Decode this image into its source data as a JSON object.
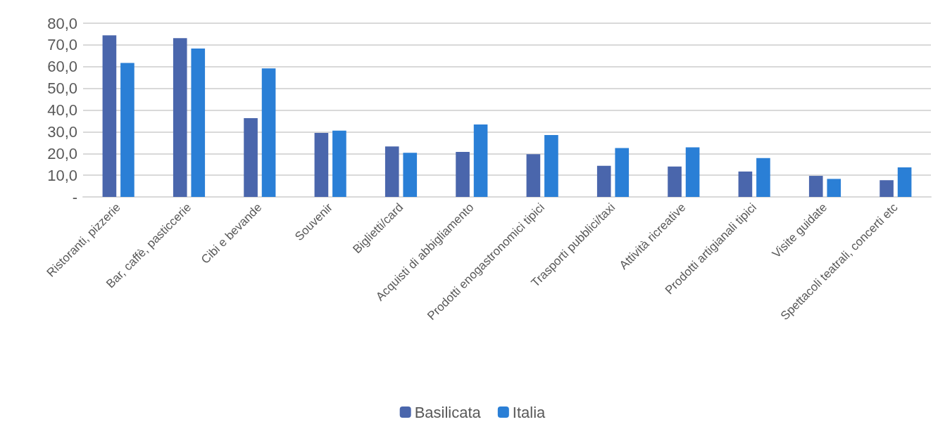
{
  "chart_data": {
    "type": "bar",
    "categories": [
      "Ristoranti, pizzerie",
      "Bar, caffè, pasticcerie",
      "Cibi e bevande",
      "Souvenir",
      "Biglietti/card",
      "Acquisti di abbigliamento",
      "Prodotti enogastronomici tipici",
      "Trasporti pubblici/taxi",
      "Attività ricreative",
      "Prodotti artigianali tipici",
      "Visite guidate",
      "Spettacoli teatrali, concerti etc"
    ],
    "series": [
      {
        "name": "Basilicata",
        "color": "#4a66ac",
        "values": [
          74.4,
          73.1,
          36.3,
          29.5,
          23.2,
          20.7,
          19.7,
          14.3,
          14.0,
          11.7,
          9.7,
          7.7
        ]
      },
      {
        "name": "Italia",
        "color": "#2a7fd6",
        "values": [
          61.7,
          68.3,
          59.2,
          30.5,
          20.3,
          33.4,
          28.5,
          22.5,
          22.8,
          17.9,
          8.3,
          13.6
        ]
      }
    ],
    "ylim": [
      0,
      80
    ],
    "yticks": [
      {
        "value": 0,
        "label": "-"
      },
      {
        "value": 10,
        "label": "10,0"
      },
      {
        "value": 20,
        "label": "20,0"
      },
      {
        "value": 30,
        "label": "30,0"
      },
      {
        "value": 40,
        "label": "40,0"
      },
      {
        "value": 50,
        "label": "50,0"
      },
      {
        "value": 60,
        "label": "60,0"
      },
      {
        "value": 70,
        "label": "70,0"
      },
      {
        "value": 80,
        "label": "80,0"
      }
    ],
    "grid": "y",
    "legend": "bottom"
  }
}
